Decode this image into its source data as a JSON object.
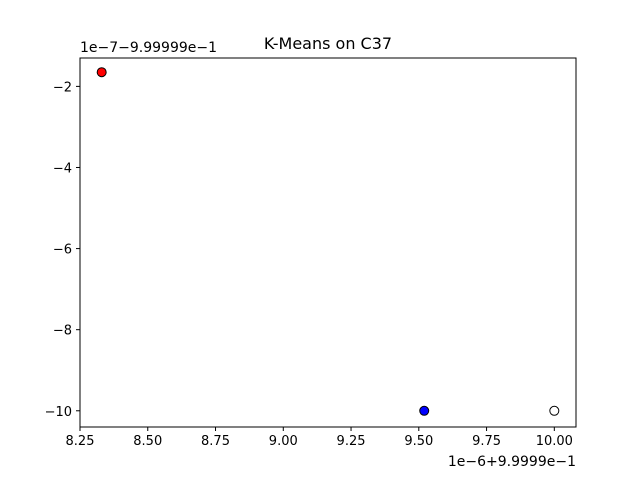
{
  "chart_data": {
    "type": "scatter",
    "title": "K-Means on C37",
    "xlabel": "",
    "ylabel": "",
    "x_offset_label": "1e−6+9.9999e−1",
    "y_offset_label": "1e−7−9.99999e−1",
    "xlim": [
      8.25,
      10.08
    ],
    "ylim": [
      -10.4,
      -1.3
    ],
    "x_ticks": [
      8.25,
      8.5,
      8.75,
      9.0,
      9.25,
      9.5,
      9.75,
      10.0
    ],
    "x_tick_labels": [
      "8.25",
      "8.50",
      "8.75",
      "9.00",
      "9.25",
      "9.50",
      "9.75",
      "10.00"
    ],
    "y_ticks": [
      -2,
      -4,
      -6,
      -8,
      -10
    ],
    "y_tick_labels": [
      "−2",
      "−4",
      "−6",
      "−8",
      "−10"
    ],
    "grid": false,
    "points": [
      {
        "x": 8.33,
        "y": -1.65,
        "color": "#ff0000"
      },
      {
        "x": 9.52,
        "y": -10.0,
        "color": "#0000ff"
      },
      {
        "x": 10.0,
        "y": -10.0,
        "color": "#ffffff"
      }
    ]
  }
}
